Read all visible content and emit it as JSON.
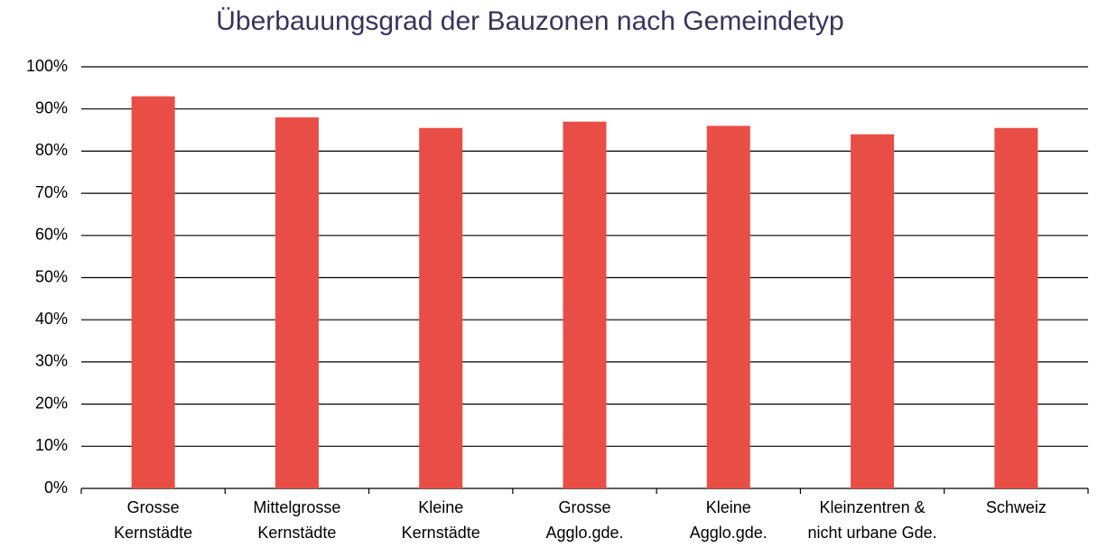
{
  "chart_data": {
    "type": "bar",
    "title": "Überbauungsgrad der Bauzonen nach Gemeindetyp",
    "categories": [
      [
        "Grosse",
        "Kernstädte"
      ],
      [
        "Mittelgrosse",
        "Kernstädte"
      ],
      [
        "Kleine",
        "Kernstädte"
      ],
      [
        "Grosse",
        "Agglo.gde."
      ],
      [
        "Kleine",
        "Agglo.gde."
      ],
      [
        "Kleinzentren &",
        "nicht urbane Gde."
      ],
      [
        "Schweiz"
      ]
    ],
    "values": [
      93,
      88,
      85.5,
      87,
      86,
      84,
      85.5
    ],
    "color": "#e84e45",
    "ylim": [
      0,
      100
    ],
    "yticks": [
      {
        "value": 0,
        "label": "0%"
      },
      {
        "value": 10,
        "label": "10%"
      },
      {
        "value": 20,
        "label": "20%"
      },
      {
        "value": 30,
        "label": "30%"
      },
      {
        "value": 40,
        "label": "40%"
      },
      {
        "value": 50,
        "label": "50%"
      },
      {
        "value": 60,
        "label": "60%"
      },
      {
        "value": 70,
        "label": "70%"
      },
      {
        "value": 80,
        "label": "80%"
      },
      {
        "value": 90,
        "label": "90%"
      },
      {
        "value": 100,
        "label": "100%"
      }
    ],
    "grid": true
  }
}
